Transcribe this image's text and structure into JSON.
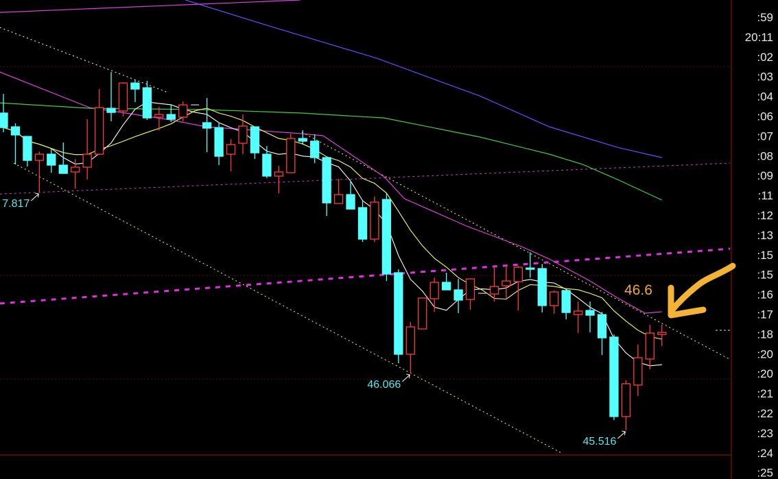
{
  "chart_data": {
    "type": "candlestick",
    "ylim": [
      45.045,
      49.68
    ],
    "colors": {
      "background": "#000000",
      "up": "#ff3c3c",
      "down": "#54ffff",
      "ma_fast": "#ffffff",
      "ma_mid": "#ffff50",
      "ma_magenta": "#e040e0",
      "ma_green": "#40d040",
      "ma_blue": "#6050ff",
      "channel": "#ffff60",
      "annotation": "#54e8f0",
      "hand_note": "#f0a838",
      "axis": "#a01010"
    },
    "candles": [
      [
        48.586,
        48.771,
        48.4,
        48.446
      ],
      [
        48.453,
        48.486,
        48.088,
        48.374
      ],
      [
        48.36,
        48.36,
        48.069,
        48.128
      ],
      [
        48.128,
        48.214,
        47.817,
        48.188
      ],
      [
        48.188,
        48.241,
        48.009,
        48.082
      ],
      [
        48.082,
        48.301,
        48.002,
        48.002
      ],
      [
        48.016,
        48.141,
        47.856,
        48.062
      ],
      [
        48.062,
        48.526,
        47.943,
        48.188
      ],
      [
        48.188,
        48.818,
        48.18,
        48.639
      ],
      [
        48.632,
        48.983,
        48.506,
        48.592
      ],
      [
        48.606,
        48.884,
        48.553,
        48.877
      ],
      [
        48.877,
        48.904,
        48.692,
        48.818
      ],
      [
        48.831,
        48.897,
        48.519,
        48.539
      ],
      [
        48.546,
        48.645,
        48.42,
        48.572
      ],
      [
        48.572,
        48.672,
        48.5,
        48.526
      ],
      [
        48.546,
        48.698,
        48.506,
        48.665
      ],
      [
        48.665,
        48.665,
        48.665,
        48.665
      ],
      [
        48.493,
        48.732,
        48.208,
        48.44
      ],
      [
        48.446,
        48.486,
        48.082,
        48.168
      ],
      [
        48.188,
        48.334,
        48.022,
        48.281
      ],
      [
        48.294,
        48.572,
        48.188,
        48.46
      ],
      [
        48.453,
        48.453,
        48.141,
        48.201
      ],
      [
        48.188,
        48.267,
        47.956,
        47.976
      ],
      [
        47.976,
        48.075,
        47.81,
        48.016
      ],
      [
        48.009,
        48.387,
        48.009,
        48.34
      ],
      [
        48.34,
        48.42,
        48.287,
        48.314
      ],
      [
        48.314,
        48.38,
        48.102,
        48.155
      ],
      [
        48.155,
        48.155,
        47.591,
        47.717
      ],
      [
        47.711,
        47.949,
        47.711,
        47.797
      ],
      [
        47.797,
        47.929,
        47.657,
        47.657
      ],
      [
        47.671,
        47.737,
        47.339,
        47.366
      ],
      [
        47.366,
        47.777,
        47.339,
        47.724
      ],
      [
        47.75,
        47.81,
        46.961,
        47.028
      ],
      [
        47.041,
        47.074,
        46.166,
        46.252
      ],
      [
        46.252,
        46.564,
        46.066,
        46.517
      ],
      [
        46.497,
        46.796,
        46.497,
        46.796
      ],
      [
        46.789,
        46.994,
        46.663,
        46.948
      ],
      [
        46.948,
        47.041,
        46.875,
        46.875
      ],
      [
        46.875,
        46.981,
        46.65,
        46.776
      ],
      [
        46.782,
        46.988,
        46.683,
        46.981
      ],
      [
        46.842,
        46.842,
        46.842,
        46.842
      ],
      [
        46.835,
        47.101,
        46.762,
        46.908
      ],
      [
        46.915,
        47.107,
        46.796,
        46.961
      ],
      [
        46.955,
        47.107,
        46.676,
        47.094
      ],
      [
        47.087,
        47.24,
        46.994,
        47.074
      ],
      [
        47.081,
        47.127,
        46.656,
        46.723
      ],
      [
        46.723,
        46.869,
        46.643,
        46.855
      ],
      [
        46.869,
        46.869,
        46.59,
        46.656
      ],
      [
        46.636,
        46.762,
        46.457,
        46.67
      ],
      [
        46.676,
        46.762,
        46.464,
        46.63
      ],
      [
        46.636,
        46.663,
        46.245,
        46.411
      ],
      [
        46.418,
        46.444,
        45.615,
        45.649
      ],
      [
        45.649,
        46.0,
        45.516,
        45.967
      ],
      [
        45.954,
        46.345,
        45.848,
        46.219
      ],
      [
        46.206,
        46.537,
        46.106,
        46.457
      ],
      [
        46.444,
        46.537,
        46.332,
        46.464
      ]
    ],
    "lines": [
      {
        "key": "ma_magenta",
        "points": [
          [
            -0.3,
            48.983
          ],
          [
            7.2,
            48.639
          ],
          [
            14.0,
            48.519
          ],
          [
            16.9,
            48.453
          ],
          [
            24.9,
            48.387
          ],
          [
            26.7,
            48.367
          ],
          [
            31.8,
            47.969
          ],
          [
            33.5,
            47.757
          ],
          [
            38.7,
            47.492
          ],
          [
            43.3,
            47.293
          ],
          [
            45.6,
            47.174
          ],
          [
            49.0,
            46.961
          ],
          [
            51.3,
            46.796
          ],
          [
            53.6,
            46.65
          ],
          [
            55.0,
            46.663
          ]
        ]
      },
      {
        "key": "ma_green",
        "points": [
          [
            -0.3,
            48.685
          ],
          [
            7.2,
            48.632
          ],
          [
            16.9,
            48.619
          ],
          [
            24.9,
            48.586
          ],
          [
            31.8,
            48.539
          ],
          [
            39.8,
            48.354
          ],
          [
            45.6,
            48.188
          ],
          [
            48.4,
            48.088
          ],
          [
            51.3,
            47.943
          ],
          [
            55.0,
            47.744
          ]
        ]
      },
      {
        "key": "ma_blue",
        "points": [
          [
            15.2,
            49.68
          ],
          [
            22.6,
            49.414
          ],
          [
            31.2,
            49.116
          ],
          [
            39.8,
            48.751
          ],
          [
            45.6,
            48.453
          ],
          [
            51.3,
            48.254
          ],
          [
            55.0,
            48.155
          ]
        ]
      },
      {
        "key": "ma_magenta",
        "points": [
          [
            -0.3,
            49.56
          ],
          [
            24.8,
            49.68
          ]
        ]
      }
    ],
    "trendlines": [
      {
        "style": "dotted",
        "color": "#ffffff",
        "points": [
          [
            -0.3,
            49.414
          ],
          [
            13.75,
            48.785
          ]
        ]
      },
      {
        "style": "dotted",
        "color": "#ffff60",
        "points": [
          [
            24.93,
            48.4
          ],
          [
            60.74,
            46.199
          ]
        ]
      },
      {
        "style": "dotted",
        "color": "#ffff60",
        "points": [
          [
            0.86,
            48.102
          ],
          [
            46.7,
            45.291
          ]
        ]
      },
      {
        "style": "dotted-thin",
        "color": "#d040d0",
        "points": [
          [
            -0.3,
            47.803
          ],
          [
            60.7,
            48.102
          ]
        ]
      },
      {
        "style": "dashed-thick",
        "color": "#e030e0",
        "points": [
          [
            -0.3,
            46.743
          ],
          [
            60.7,
            47.273
          ]
        ]
      }
    ],
    "annotations": [
      {
        "text": "7.817",
        "price": 47.817,
        "index": 3
      },
      {
        "text": "46.066",
        "price": 46.066,
        "index": 34
      },
      {
        "text": "45.516",
        "price": 45.516,
        "index": 52
      }
    ],
    "hand_note": "46.6",
    "time_axis_labels": [
      ":59",
      "20:11",
      ":02",
      ":03",
      ":04",
      ":06",
      ":07",
      ":08",
      ":09",
      ":11",
      ":12",
      ":13",
      ":15",
      ":15",
      ":16",
      ":17",
      ":18",
      ":20",
      ":20",
      ":21",
      ":22",
      ":23",
      ":24",
      ":25"
    ]
  }
}
